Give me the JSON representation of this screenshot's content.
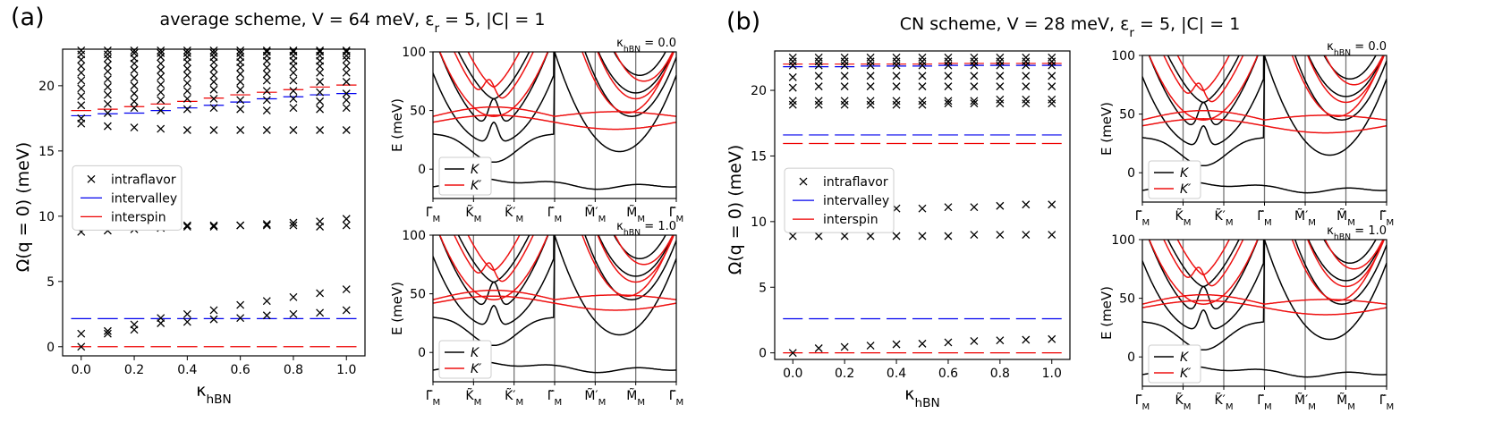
{
  "panels": [
    {
      "label": "(a)",
      "title": "average scheme,  V = 64 meV,  ε_r = 5,  |C| = 1",
      "main": {
        "type": "scatter",
        "xlabel": "κ_hBN",
        "ylabel": "Ω(q = 0)  (meV)",
        "xlim": [
          -0.07,
          1.07
        ],
        "ylim": [
          -0.7,
          22.8
        ],
        "xticks": [
          0.0,
          0.2,
          0.4,
          0.6,
          0.8,
          1.0
        ],
        "xticklabels": [
          "0.0",
          "0.2",
          "0.4",
          "0.6",
          "0.8",
          "1.0"
        ],
        "yticks": [
          0,
          5,
          10,
          15,
          20
        ],
        "yticklabels": [
          "0",
          "5",
          "10",
          "15",
          "20"
        ],
        "legend": {
          "position": "center-left",
          "entries": [
            "intraflavor",
            "intervalley",
            "interspin"
          ]
        },
        "kappa": [
          0.0,
          0.1,
          0.2,
          0.3,
          0.4,
          0.5,
          0.6,
          0.7,
          0.8,
          0.9,
          1.0
        ],
        "intraflavor": [
          [
            0.0,
            1.0,
            9.3,
            8.8,
            17.1,
            17.5,
            18.5,
            19.2,
            19.8,
            20.4,
            21.0,
            21.5,
            22.0,
            22.4,
            22.7
          ],
          [
            1.0,
            1.2,
            9.4,
            8.9,
            16.9,
            17.9,
            18.6,
            19.3,
            19.9,
            20.5,
            21.1,
            21.6,
            22.1,
            22.4,
            22.7
          ],
          [
            1.3,
            1.7,
            9.3,
            9.0,
            16.8,
            18.3,
            18.8,
            19.4,
            20.0,
            20.6,
            21.2,
            21.7,
            22.1,
            22.5,
            22.7
          ],
          [
            1.8,
            2.2,
            9.3,
            9.1,
            16.7,
            18.1,
            18.9,
            19.5,
            20.1,
            20.7,
            21.2,
            21.7,
            22.2,
            22.5,
            22.7
          ],
          [
            1.9,
            2.5,
            9.3,
            9.2,
            16.6,
            18.2,
            19.0,
            19.6,
            20.2,
            20.8,
            21.3,
            21.8,
            22.2,
            22.5,
            22.7
          ],
          [
            2.1,
            2.8,
            9.3,
            9.2,
            16.6,
            18.3,
            19.0,
            19.7,
            20.3,
            20.8,
            21.3,
            21.8,
            22.2,
            22.5,
            22.7
          ],
          [
            2.2,
            3.2,
            9.3,
            9.3,
            16.6,
            18.2,
            18.9,
            19.7,
            20.3,
            20.9,
            21.4,
            21.8,
            22.2,
            22.5,
            22.7
          ],
          [
            2.4,
            3.5,
            9.4,
            9.3,
            16.6,
            18.1,
            18.9,
            19.6,
            20.4,
            20.9,
            21.4,
            21.9,
            22.3,
            22.6,
            22.7
          ],
          [
            2.5,
            3.8,
            9.5,
            9.3,
            16.6,
            18.3,
            19.0,
            19.6,
            20.4,
            21.0,
            21.5,
            21.9,
            22.3,
            22.6,
            22.7
          ],
          [
            2.6,
            4.1,
            9.6,
            9.2,
            16.6,
            18.2,
            18.8,
            19.5,
            20.3,
            21.0,
            21.5,
            21.9,
            22.3,
            22.6,
            22.7
          ],
          [
            2.8,
            4.4,
            9.8,
            9.3,
            16.6,
            18.3,
            18.9,
            19.4,
            20.3,
            21.0,
            21.5,
            22.0,
            22.3,
            22.6,
            22.7
          ]
        ],
        "intervalley": [
          [
            2.15,
            17.7
          ],
          [
            2.15,
            17.85
          ],
          [
            2.15,
            17.9
          ],
          [
            2.15,
            18.1
          ],
          [
            2.15,
            18.3
          ],
          [
            2.15,
            18.5
          ],
          [
            2.15,
            18.75
          ],
          [
            2.15,
            19.0
          ],
          [
            2.15,
            19.15
          ],
          [
            2.15,
            19.3
          ],
          [
            2.15,
            19.4
          ]
        ],
        "interspin": [
          [
            0.0,
            18.1
          ],
          [
            0.0,
            18.2
          ],
          [
            0.0,
            18.4
          ],
          [
            0.0,
            18.6
          ],
          [
            0.0,
            18.8
          ],
          [
            0.0,
            19.05
          ],
          [
            0.0,
            19.3
          ],
          [
            0.0,
            19.5
          ],
          [
            0.0,
            19.7
          ],
          [
            0.0,
            19.9
          ],
          [
            0.0,
            20.05
          ]
        ]
      },
      "bands": [
        {
          "title": "κ_hBN = 0.0",
          "kappa": 0.0
        },
        {
          "title": "κ_hBN = 1.0",
          "kappa": 1.0
        }
      ]
    },
    {
      "label": "(b)",
      "title": "CN scheme,  V = 28 meV,  ε_r = 5,  |C| = 1",
      "main": {
        "type": "scatter",
        "xlabel": "κ_hBN",
        "ylabel": "Ω(q = 0)  (meV)",
        "xlim": [
          -0.07,
          1.07
        ],
        "ylim": [
          -0.5,
          23.0
        ],
        "xticks": [
          0.0,
          0.2,
          0.4,
          0.6,
          0.8,
          1.0
        ],
        "xticklabels": [
          "0.0",
          "0.2",
          "0.4",
          "0.6",
          "0.8",
          "1.0"
        ],
        "yticks": [
          0,
          5,
          10,
          15,
          20
        ],
        "yticklabels": [
          "0",
          "5",
          "10",
          "15",
          "20"
        ],
        "legend": {
          "position": "center-left",
          "entries": [
            "intraflavor",
            "intervalley",
            "interspin"
          ]
        },
        "kappa": [
          0.0,
          0.1,
          0.2,
          0.3,
          0.4,
          0.5,
          0.6,
          0.7,
          0.8,
          0.9,
          1.0
        ],
        "intraflavor": [
          [
            0.0,
            8.9,
            10.7,
            18.9,
            19.2,
            20.2,
            21.0,
            21.9,
            22.2,
            22.5
          ],
          [
            0.35,
            8.9,
            10.8,
            18.9,
            19.2,
            20.3,
            21.1,
            21.9,
            22.2,
            22.5
          ],
          [
            0.45,
            8.9,
            10.8,
            18.9,
            19.2,
            20.3,
            21.1,
            21.9,
            22.2,
            22.5
          ],
          [
            0.55,
            8.9,
            10.9,
            18.9,
            19.2,
            20.3,
            21.1,
            21.9,
            22.2,
            22.5
          ],
          [
            0.65,
            8.9,
            11.0,
            18.9,
            19.2,
            20.3,
            21.1,
            21.9,
            22.2,
            22.5
          ],
          [
            0.7,
            8.9,
            11.0,
            18.9,
            19.2,
            20.3,
            21.1,
            21.9,
            22.2,
            22.5
          ],
          [
            0.8,
            8.9,
            11.1,
            19.0,
            19.2,
            20.3,
            21.1,
            21.9,
            22.2,
            22.5
          ],
          [
            0.9,
            9.0,
            11.1,
            19.0,
            19.2,
            20.3,
            21.1,
            21.9,
            22.2,
            22.5
          ],
          [
            0.95,
            9.0,
            11.2,
            19.0,
            19.3,
            20.3,
            21.1,
            21.9,
            22.2,
            22.5
          ],
          [
            1.0,
            9.0,
            11.3,
            19.0,
            19.3,
            20.3,
            21.1,
            21.9,
            22.2,
            22.5
          ],
          [
            1.05,
            9.0,
            11.3,
            19.0,
            19.3,
            20.3,
            21.1,
            21.9,
            22.2,
            22.5
          ]
        ],
        "intervalley": [
          [
            2.6,
            16.6,
            21.8
          ],
          [
            2.6,
            16.6,
            21.8
          ],
          [
            2.6,
            16.6,
            21.8
          ],
          [
            2.6,
            16.6,
            21.85
          ],
          [
            2.6,
            16.6,
            21.85
          ],
          [
            2.6,
            16.6,
            21.85
          ],
          [
            2.6,
            16.6,
            21.9
          ],
          [
            2.6,
            16.6,
            21.9
          ],
          [
            2.6,
            16.6,
            21.9
          ],
          [
            2.6,
            16.6,
            21.9
          ],
          [
            2.6,
            16.6,
            21.9
          ]
        ],
        "interspin": [
          [
            0.0,
            15.95,
            22.0
          ],
          [
            0.0,
            15.95,
            22.0
          ],
          [
            0.0,
            15.95,
            22.0
          ],
          [
            0.0,
            15.95,
            22.0
          ],
          [
            0.0,
            15.95,
            22.0
          ],
          [
            0.0,
            15.95,
            22.0
          ],
          [
            0.0,
            15.95,
            22.05
          ],
          [
            0.0,
            15.95,
            22.05
          ],
          [
            0.0,
            15.95,
            22.05
          ],
          [
            0.0,
            15.95,
            22.05
          ],
          [
            0.0,
            15.95,
            22.05
          ]
        ]
      },
      "bands": [
        {
          "title": "κ_hBN = 0.0",
          "kappa": 0.0
        },
        {
          "title": "κ_hBN = 1.0",
          "kappa": 1.0
        }
      ]
    }
  ],
  "band_common": {
    "type": "line",
    "ylabel": "E (meV)",
    "ylim": [
      -25,
      100
    ],
    "yticks": [
      0,
      50,
      100
    ],
    "yticklabels": [
      "0",
      "50",
      "100"
    ],
    "kpath": [
      "Γ̃_M",
      "K̃_M",
      "K̃′_M",
      "Γ̃_M",
      "M̃′_M",
      "M̃_M",
      "Γ̃_M"
    ],
    "kpath_pos": [
      0,
      1,
      2,
      3,
      4,
      5,
      6
    ],
    "legend": {
      "position": "lower-left",
      "entries": [
        "K",
        "K′"
      ]
    }
  },
  "colors": {
    "intraflavor": "#000000",
    "intervalley": "#0000ee",
    "interspin": "#ee0000",
    "K": "#000000",
    "Kprime": "#ee1111"
  }
}
